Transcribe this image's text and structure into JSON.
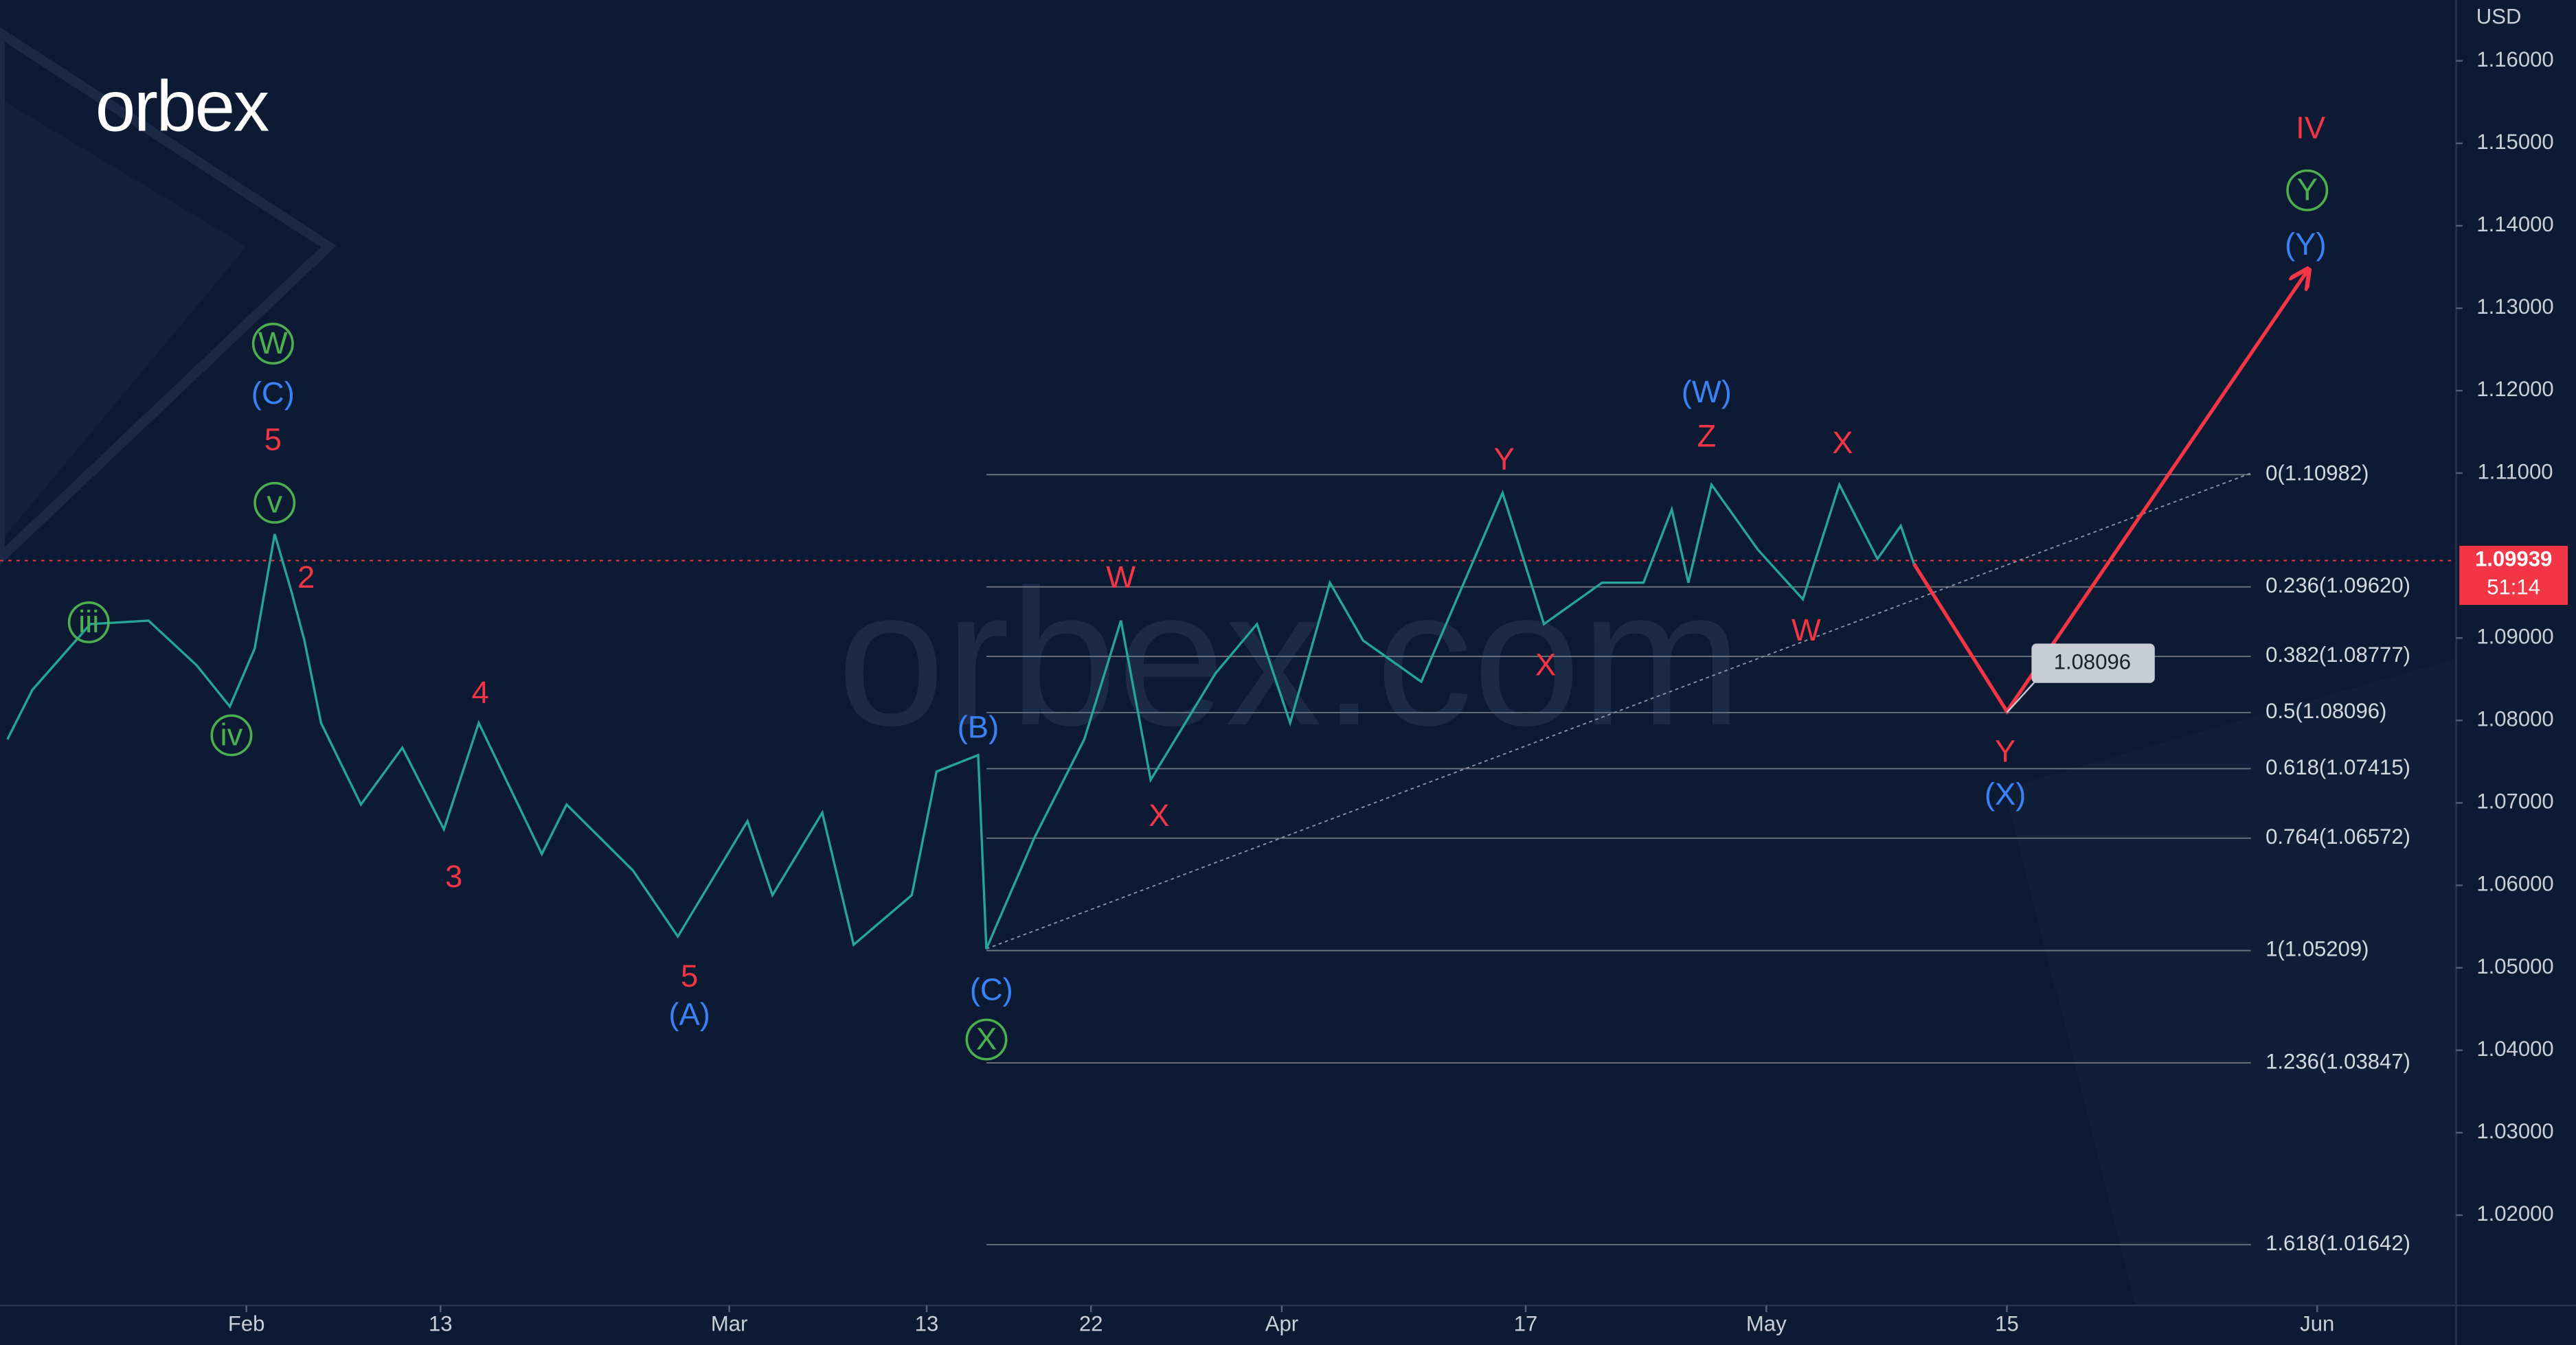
{
  "logo": "orbex",
  "watermark": "orbex.com",
  "chart_data": {
    "type": "line",
    "currency": "USD",
    "xlim": [
      -14.85,
      133.17
    ],
    "ylim": [
      1.00904,
      1.16737
    ],
    "xticks": [
      {
        "value": 0,
        "label": "Feb"
      },
      {
        "value": 11.7,
        "label": "13"
      },
      {
        "value": 29.1,
        "label": "Mar"
      },
      {
        "value": 41.0,
        "label": "13"
      },
      {
        "value": 50.9,
        "label": "22"
      },
      {
        "value": 62.4,
        "label": "Apr"
      },
      {
        "value": 77.1,
        "label": "17"
      },
      {
        "value": 91.6,
        "label": "May"
      },
      {
        "value": 106.1,
        "label": "15"
      },
      {
        "value": 124.8,
        "label": "Jun"
      }
    ],
    "yticks": [
      {
        "value": 1.16,
        "label": "1.16000"
      },
      {
        "value": 1.15,
        "label": "1.15000"
      },
      {
        "value": 1.14,
        "label": "1.14000"
      },
      {
        "value": 1.13,
        "label": "1.13000"
      },
      {
        "value": 1.12,
        "label": "1.12000"
      },
      {
        "value": 1.11,
        "label": "1.11000"
      },
      {
        "value": 1.09,
        "label": "1.09000"
      },
      {
        "value": 1.08,
        "label": "1.08000"
      },
      {
        "value": 1.07,
        "label": "1.07000"
      },
      {
        "value": 1.06,
        "label": "1.06000"
      },
      {
        "value": 1.05,
        "label": "1.05000"
      },
      {
        "value": 1.04,
        "label": "1.04000"
      },
      {
        "value": 1.03,
        "label": "1.03000"
      },
      {
        "value": 1.02,
        "label": "1.02000"
      }
    ],
    "color": "#26a69a",
    "x": [
      -14.4,
      -12.9,
      -9.4,
      -5.9,
      -3.0,
      -1.0,
      0.5,
      1.7,
      2.7,
      3.5,
      4.5,
      6.9,
      9.4,
      11.9,
      14.0,
      17.8,
      19.3,
      23.3,
      26.0,
      30.2,
      31.7,
      34.7,
      36.6,
      40.1,
      41.6,
      44.1,
      44.6,
      47.5,
      50.5,
      52.7,
      54.5,
      58.4,
      60.9,
      62.9,
      65.3,
      67.3,
      70.8,
      73.8,
      75.7,
      78.2,
      81.7,
      84.2,
      85.9,
      86.9,
      88.3,
      91.1,
      93.8,
      96.0,
      98.3,
      99.7,
      100.5
    ],
    "values": [
      1.0777,
      1.0837,
      1.0917,
      1.0921,
      1.0867,
      1.0817,
      1.0887,
      1.1026,
      1.0957,
      1.0897,
      1.0797,
      1.0698,
      1.0767,
      1.0668,
      1.0797,
      1.0638,
      1.0698,
      1.0618,
      1.0538,
      1.0678,
      1.0588,
      1.0688,
      1.0528,
      1.0588,
      1.0738,
      1.0758,
      1.0523,
      1.0658,
      1.0777,
      1.0921,
      1.0728,
      1.0857,
      1.0917,
      1.0797,
      1.0967,
      1.0897,
      1.0847,
      1.0987,
      1.1076,
      1.0917,
      1.0967,
      1.0967,
      1.1056,
      1.0967,
      1.1086,
      1.1007,
      1.0947,
      1.1086,
      1.0996,
      1.1036,
      1.099
    ],
    "projection": {
      "color": "#f23645",
      "x": [
        100.5,
        106.1,
        124.2
      ],
      "values": [
        1.099,
        1.0811,
        1.1345
      ]
    },
    "trendline": {
      "color": "#8a93a6",
      "x": [
        44.6,
        120.8
      ],
      "values": [
        1.0523,
        1.11
      ]
    },
    "fib": {
      "color": "#6b7280",
      "xlim": [
        44.6,
        120.8
      ],
      "levels": [
        {
          "value": 1.10982,
          "label": "0(1.10982)"
        },
        {
          "value": 1.0962,
          "label": "0.236(1.09620)"
        },
        {
          "value": 1.08777,
          "label": "0.382(1.08777)"
        },
        {
          "value": 1.08096,
          "label": "0.5(1.08096)"
        },
        {
          "value": 1.07415,
          "label": "0.618(1.07415)"
        },
        {
          "value": 1.06572,
          "label": "0.764(1.06572)"
        },
        {
          "value": 1.05209,
          "label": "1(1.05209)"
        },
        {
          "value": 1.03847,
          "label": "1.236(1.03847)"
        },
        {
          "value": 1.01642,
          "label": "1.618(1.01642)"
        }
      ]
    },
    "target": {
      "x": 106.1,
      "value": 1.08096
    },
    "last_price": {
      "value": 1.09939,
      "countdown": "51:14",
      "color": "#f23645"
    },
    "wave_labels": [
      {
        "text": "W",
        "x": 1.6,
        "y": 1.1257,
        "color": "#4caf50",
        "circled": true
      },
      {
        "text": "(C)",
        "x": 1.6,
        "y": 1.1196,
        "color": "#3b82f6",
        "circled": false
      },
      {
        "text": "5",
        "x": 1.6,
        "y": 1.114,
        "color": "#f23645",
        "circled": false
      },
      {
        "text": "v",
        "x": 1.7,
        "y": 1.1064,
        "color": "#4caf50",
        "circled": true
      },
      {
        "text": "2",
        "x": 3.6,
        "y": 1.0973,
        "color": "#f23645",
        "circled": false
      },
      {
        "text": "iii",
        "x": -9.5,
        "y": 1.0919,
        "color": "#4caf50",
        "circled": true
      },
      {
        "text": "iv",
        "x": -0.9,
        "y": 1.0782,
        "color": "#4caf50",
        "circled": true
      },
      {
        "text": "4",
        "x": 14.1,
        "y": 1.0833,
        "color": "#f23645",
        "circled": false
      },
      {
        "text": "3",
        "x": 12.5,
        "y": 1.061,
        "color": "#f23645",
        "circled": false
      },
      {
        "text": "5",
        "x": 26.7,
        "y": 1.0489,
        "color": "#f23645",
        "circled": false
      },
      {
        "text": "(A)",
        "x": 26.7,
        "y": 1.0443,
        "color": "#3b82f6",
        "circled": false
      },
      {
        "text": "(B)",
        "x": 44.1,
        "y": 1.0791,
        "color": "#3b82f6",
        "circled": false
      },
      {
        "text": "(C)",
        "x": 44.9,
        "y": 1.0473,
        "color": "#3b82f6",
        "circled": false
      },
      {
        "text": "X",
        "x": 44.6,
        "y": 1.0413,
        "color": "#4caf50",
        "circled": true
      },
      {
        "text": "W",
        "x": 52.7,
        "y": 1.0973,
        "color": "#f23645",
        "circled": false
      },
      {
        "text": "X",
        "x": 55.0,
        "y": 1.0684,
        "color": "#f23645",
        "circled": false
      },
      {
        "text": "Y",
        "x": 75.8,
        "y": 1.1116,
        "color": "#f23645",
        "circled": false
      },
      {
        "text": "X",
        "x": 78.3,
        "y": 1.0867,
        "color": "#f23645",
        "circled": false
      },
      {
        "text": "(W)",
        "x": 88.0,
        "y": 1.1198,
        "color": "#3b82f6",
        "circled": false
      },
      {
        "text": "Z",
        "x": 88.0,
        "y": 1.1144,
        "color": "#f23645",
        "circled": false
      },
      {
        "text": "X",
        "x": 96.2,
        "y": 1.1136,
        "color": "#f23645",
        "circled": false
      },
      {
        "text": "W",
        "x": 94.0,
        "y": 1.0909,
        "color": "#f23645",
        "circled": false
      },
      {
        "text": "Y",
        "x": 106.0,
        "y": 1.0762,
        "color": "#f23645",
        "circled": false
      },
      {
        "text": "(X)",
        "x": 106.0,
        "y": 1.071,
        "color": "#3b82f6",
        "circled": false
      },
      {
        "text": "IV",
        "x": 124.4,
        "y": 1.1518,
        "color": "#f23645",
        "circled": false
      },
      {
        "text": "Y",
        "x": 124.2,
        "y": 1.1443,
        "color": "#4caf50",
        "circled": true
      },
      {
        "text": "(Y)",
        "x": 124.1,
        "y": 1.1377,
        "color": "#3b82f6",
        "circled": false
      }
    ]
  }
}
